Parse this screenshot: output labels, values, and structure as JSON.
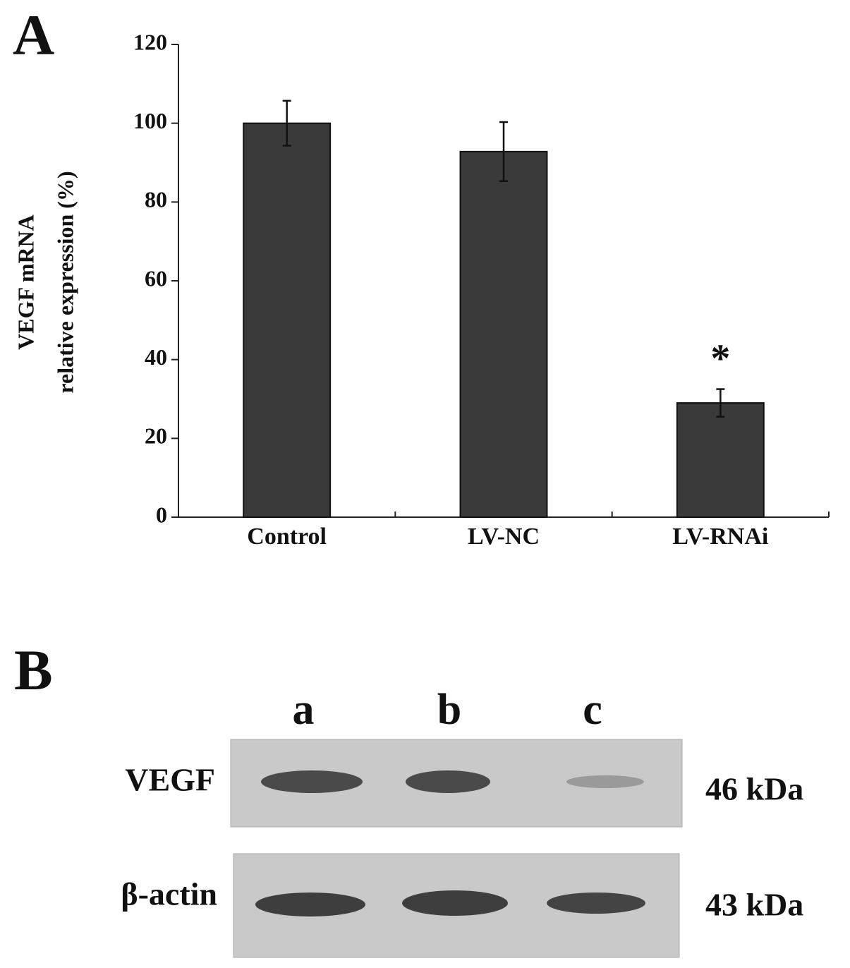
{
  "chart_data": {
    "type": "bar",
    "panel_label": "A",
    "ylabel": [
      "VEGF mRNA",
      "relative expression (%)"
    ],
    "categories": [
      "Control",
      "LV-NC",
      "LV-RNAi"
    ],
    "values": [
      100,
      92.8,
      29
    ],
    "errors": [
      5.7,
      7.5,
      3.5
    ],
    "annotation": "*",
    "color": "#3a3a3a",
    "ylim": [
      0,
      120
    ],
    "yticks": [
      0,
      20,
      40,
      60,
      80,
      100,
      120
    ],
    "grid": false
  },
  "blot": {
    "panel_label": "B",
    "lanes": [
      "a",
      "b",
      "c"
    ],
    "rows": [
      {
        "label": "VEGF",
        "size": "46 kDa"
      },
      {
        "label": "β-actin",
        "size": "43 kDa"
      }
    ]
  }
}
